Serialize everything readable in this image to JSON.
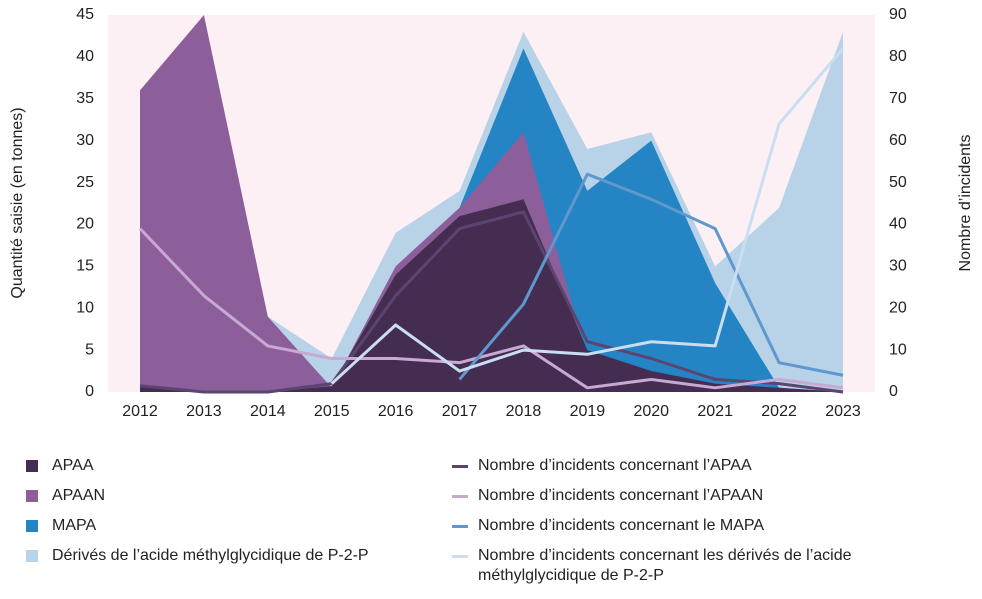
{
  "chart_data": {
    "type": "combo",
    "categories": [
      "2012",
      "2013",
      "2014",
      "2015",
      "2016",
      "2017",
      "2018",
      "2019",
      "2020",
      "2021",
      "2022",
      "2023"
    ],
    "ylabel": "Quantité saisie (en tonnes)",
    "y2label": "Nombre d’incidents",
    "ylim": [
      0,
      45
    ],
    "yticks": [
      0,
      5,
      10,
      15,
      20,
      25,
      30,
      35,
      40,
      45
    ],
    "y2lim": [
      0,
      90
    ],
    "y2ticks": [
      0,
      10,
      20,
      30,
      40,
      50,
      60,
      70,
      80,
      90
    ],
    "background": "#fdf0f5",
    "series": [
      {
        "name": "Dérivés de l’acide méthylglycidique de P-2-P",
        "type": "area",
        "color": "#b8d3e8",
        "values": [
          null,
          null,
          9,
          4,
          19,
          24,
          43,
          29,
          31,
          15,
          22,
          43
        ]
      },
      {
        "name": "MAPA",
        "type": "area",
        "color": "#2584c4",
        "values": [
          null,
          null,
          null,
          null,
          0,
          22,
          41,
          24,
          30,
          13,
          0.5,
          0
        ]
      },
      {
        "name": "APAAN",
        "type": "area",
        "color": "#8c5f9b",
        "values": [
          36,
          45,
          9,
          0.5,
          15,
          22,
          31,
          4,
          1,
          0,
          0,
          0
        ]
      },
      {
        "name": "APAA",
        "type": "area",
        "color": "#452d52",
        "values": [
          0.7,
          0,
          0,
          0.7,
          14,
          21,
          23,
          5,
          2.5,
          1,
          0.5,
          0
        ]
      },
      {
        "name": "Nombre d’incidents concernant l’APAA",
        "type": "line",
        "axis": "y2",
        "color": "#5c4470",
        "values": [
          1.5,
          0,
          0,
          2,
          23,
          39,
          43,
          12,
          8,
          3,
          2,
          0
        ]
      },
      {
        "name": "Nombre d’incidents concernant l’APAAN",
        "type": "line",
        "axis": "y2",
        "color": "#c7a9d4",
        "values": [
          39,
          23,
          11,
          8,
          8,
          7,
          11,
          1,
          3,
          1,
          3,
          1
        ]
      },
      {
        "name": "Nombre d’incidents concernant le MAPA",
        "type": "line",
        "axis": "y2",
        "color": "#5e98cf",
        "values": [
          null,
          null,
          null,
          null,
          null,
          3,
          21,
          52,
          46,
          39,
          7,
          4
        ]
      },
      {
        "name": "Nombre d’incidents concernant les dérivés de l’acide méthylglycidique de P-2-P",
        "type": "line",
        "axis": "y2",
        "color": "#c9def0",
        "values": [
          null,
          null,
          null,
          2,
          16,
          5,
          10,
          9,
          12,
          11,
          64,
          82
        ]
      }
    ],
    "legend_order": [
      3,
      4,
      2,
      5,
      1,
      6,
      0,
      7
    ]
  }
}
